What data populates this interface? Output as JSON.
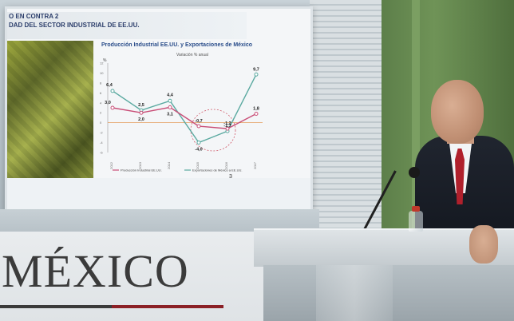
{
  "screen": {
    "title_line1": "O EN CONTRA 2",
    "title_line2": "DAD DEL SECTOR INDUSTRIAL DE EE.UU.",
    "page_number": "3"
  },
  "sign": {
    "word": "MÉXICO"
  },
  "chart_data": {
    "type": "line",
    "title": "Producción Industrial EE.UU. y Exportaciones de México",
    "subtitle": "Variación % anual",
    "ylabel": "%",
    "x": [
      "2012",
      "2013",
      "2014",
      "2015",
      "2016",
      "2017"
    ],
    "ylim": [
      -6,
      12
    ],
    "series": [
      {
        "name": "Exportaciones de México a EE.UU.",
        "values": [
          6.4,
          2.5,
          4.4,
          -4.0,
          -1.7,
          9.7
        ],
        "color": "#5aa9a0"
      },
      {
        "name": "Producción Industrial EE.UU.",
        "values": [
          3.0,
          2.0,
          3.1,
          -0.7,
          -1.2,
          1.8
        ],
        "color": "#c94f78"
      }
    ],
    "data_labels": [
      "6,4",
      "2,5",
      "4,4",
      "-4,0",
      "-1,7",
      "9,7",
      "3,0",
      "2,0",
      "3,1",
      "-0,7",
      "-1,2",
      "1,8"
    ]
  },
  "colors": {
    "accent_red": "#8b2026",
    "podium": "#c3cace"
  }
}
